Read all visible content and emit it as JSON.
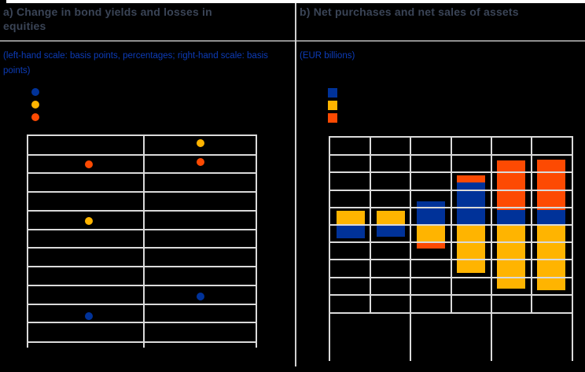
{
  "colors": {
    "background": "#000000",
    "blue": "#003299",
    "amber": "#ffb400",
    "orange": "#fd4a02",
    "title_text": "#3a4456",
    "subtitle_text": "#0d3cb8",
    "gridline": "#dadada",
    "title_separator": "#8f8f8f",
    "panel_divider": "#cfcfcf",
    "top_strip": "#ffffff"
  },
  "panel_a": {
    "title": "a) Change in bond yields and losses in\nequities",
    "subtitle": "(left-hand scale: basis points, percentages; right-hand scale: basis\npoints)",
    "legend": [
      {
        "marker": "circle",
        "color": "#003299",
        "label": ""
      },
      {
        "marker": "circle",
        "color": "#ffb400",
        "label": ""
      },
      {
        "marker": "circle",
        "color": "#fd4a02",
        "label": ""
      }
    ],
    "chart_data": {
      "type": "scatter",
      "note": "axis tick labels, legend labels and category labels are rendered black-on-black and are not visible in the image",
      "categories": [
        "",
        ""
      ],
      "series": [
        {
          "label": "",
          "color": "#003299",
          "values": [
            1.35,
            2.4
          ]
        },
        {
          "label": "",
          "color": "#ffb400",
          "values": [
            6.43,
            10.62
          ]
        },
        {
          "label": "",
          "color": "#fd4a02",
          "values": [
            9.5,
            9.6
          ]
        }
      ],
      "y_unit": "gridline intervals measured from bottom axis (numeric scale not visible)",
      "ylim": [
        0,
        11
      ],
      "y_gridline_intervals": 11,
      "grid": true,
      "legend_position": "top-left"
    }
  },
  "panel_b": {
    "title": "b) Net purchases and net sales of assets",
    "subtitle": "(EUR billions)",
    "legend": [
      {
        "marker": "square",
        "color": "#003299",
        "label": ""
      },
      {
        "marker": "square",
        "color": "#ffb400",
        "label": ""
      },
      {
        "marker": "square",
        "color": "#fd4a02",
        "label": ""
      }
    ],
    "chart_data": {
      "type": "bar",
      "stacked": true,
      "note": "axis tick labels, legend labels and category labels are rendered black-on-black and are not visible in the image; 6 bars grouped in 3 pairs by tick separators below the axis",
      "categories": [
        "",
        "",
        "",
        "",
        "",
        ""
      ],
      "series": [
        {
          "label": "",
          "color": "#003299",
          "values": [
            -0.77,
            -0.69,
            1.37,
            2.41,
            0.86,
            0.86
          ]
        },
        {
          "label": "",
          "color": "#ffb400",
          "values": [
            0.8,
            0.8,
            -0.95,
            -2.77,
            -3.65,
            -3.76
          ]
        },
        {
          "label": "",
          "color": "#fd4a02",
          "values": [
            0,
            0,
            -0.42,
            0.44,
            2.83,
            2.88
          ]
        }
      ],
      "y_unit": "gridline intervals from the zero line (numeric scale not visible)",
      "ylim": [
        -5,
        5
      ],
      "y_gridline_intervals": 10,
      "x_groups": 3,
      "grid": true,
      "legend_position": "top-left"
    }
  }
}
